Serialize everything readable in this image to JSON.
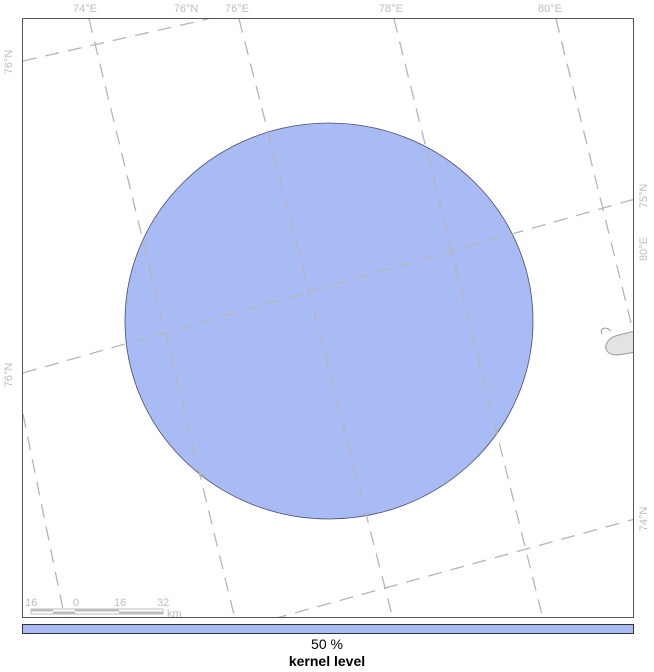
{
  "map": {
    "graticule": {
      "top_labels": [
        "74°E",
        "76°N",
        "76°E",
        "78°E",
        "80°E"
      ],
      "left_labels": [
        "76°N",
        "76°N"
      ],
      "right_labels": [
        "75°N",
        "80°E",
        "74°N"
      ]
    },
    "kernel_polygon": {
      "fill_color": "#a8bbf5",
      "stroke_color": "#4a4a6a"
    },
    "scale_bar": {
      "labels": [
        "16",
        "0",
        "16",
        "32"
      ],
      "unit": "km"
    }
  },
  "legend": {
    "swatch_color": "#a8bbf5",
    "level_label": "50 %",
    "title": "kernel level"
  }
}
